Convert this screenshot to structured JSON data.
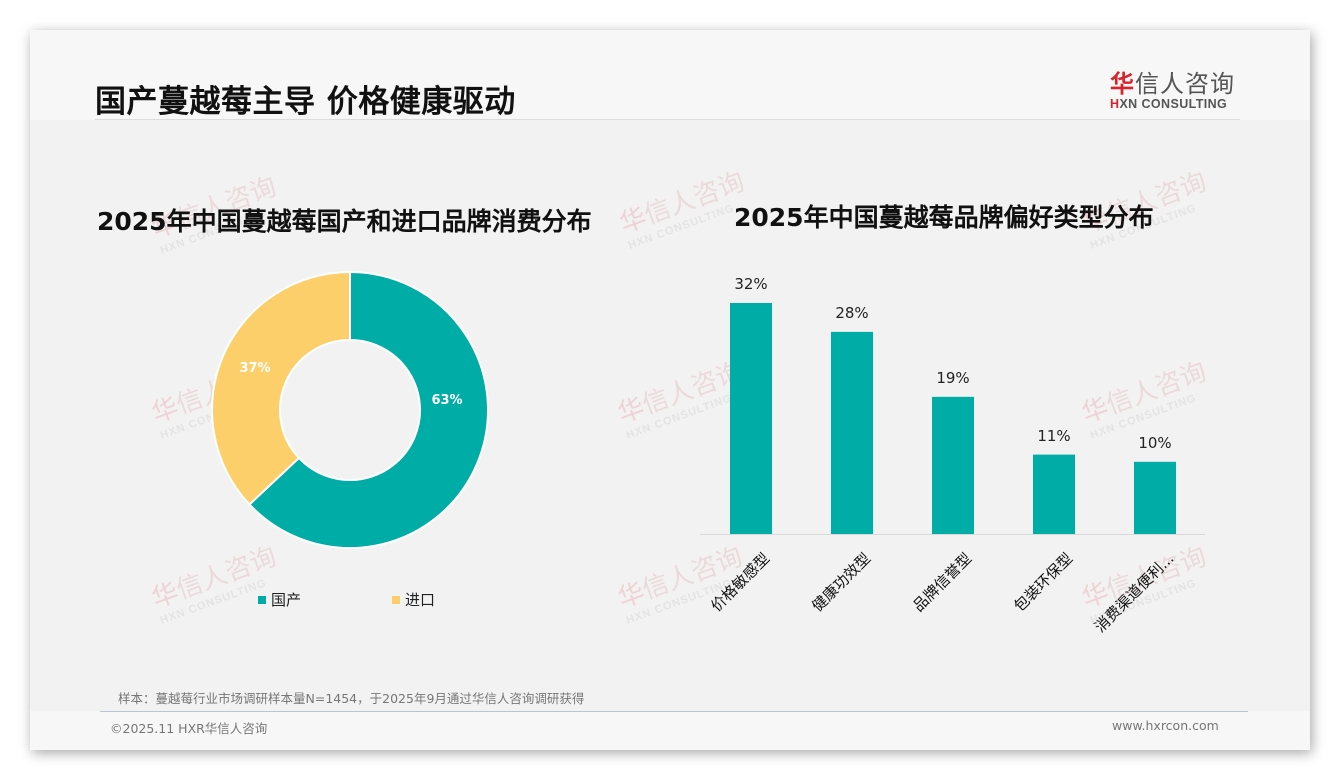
{
  "header": {
    "title": "国产蔓越莓主导 价格健康驱动",
    "logo": {
      "cn_first": "华",
      "cn_rest": "信人咨询",
      "en_mark": "H",
      "en_rest": "XN CONSULTING"
    }
  },
  "watermark": {
    "cn_first": "华",
    "cn_rest": "信人咨询",
    "en": "HXN CONSULTING"
  },
  "colors": {
    "teal": "#00ada6",
    "yellow": "#fdcf6a",
    "logo_red": "#d6242a"
  },
  "chart_data": [
    {
      "type": "pie",
      "variant": "donut",
      "title": "2025年中国蔓越莓国产和进口品牌消费分布",
      "categories": [
        "国产",
        "进口"
      ],
      "values": [
        63,
        37
      ],
      "labels": [
        "63%",
        "37%"
      ],
      "colors": [
        "#00ada6",
        "#fdcf6a"
      ],
      "legend_position": "bottom"
    },
    {
      "type": "bar",
      "title": "2025年中国蔓越莓品牌偏好类型分布",
      "categories": [
        "价格敏感型",
        "健康功效型",
        "品牌信誉型",
        "包装环保型",
        "消费渠道便利..."
      ],
      "values": [
        32,
        28,
        19,
        11,
        10
      ],
      "labels": [
        "32%",
        "28%",
        "19%",
        "11%",
        "10%"
      ],
      "color": "#00ada6",
      "xlabel": "",
      "ylabel": "",
      "grid": false
    }
  ],
  "left_chart": {
    "title": "2025年中国蔓越莓国产和进口品牌消费分布",
    "slices": [
      {
        "label": "63%",
        "name": "国产"
      },
      {
        "label": "37%",
        "name": "进口"
      }
    ],
    "legend": [
      {
        "name": "国产"
      },
      {
        "name": "进口"
      }
    ]
  },
  "right_chart": {
    "title": "2025年中国蔓越莓品牌偏好类型分布",
    "bars": [
      {
        "category": "价格敏感型",
        "label": "32%"
      },
      {
        "category": "健康功效型",
        "label": "28%"
      },
      {
        "category": "品牌信誉型",
        "label": "19%"
      },
      {
        "category": "包装环保型",
        "label": "11%"
      },
      {
        "category": "消费渠道便利...",
        "label": "10%"
      }
    ]
  },
  "footer": {
    "source": "样本：蔓越莓行业市场调研样本量N=1454，于2025年9月通过华信人咨询调研获得",
    "copyright": "©2025.11 HXR华信人咨询",
    "website": "www.hxrcon.com"
  }
}
